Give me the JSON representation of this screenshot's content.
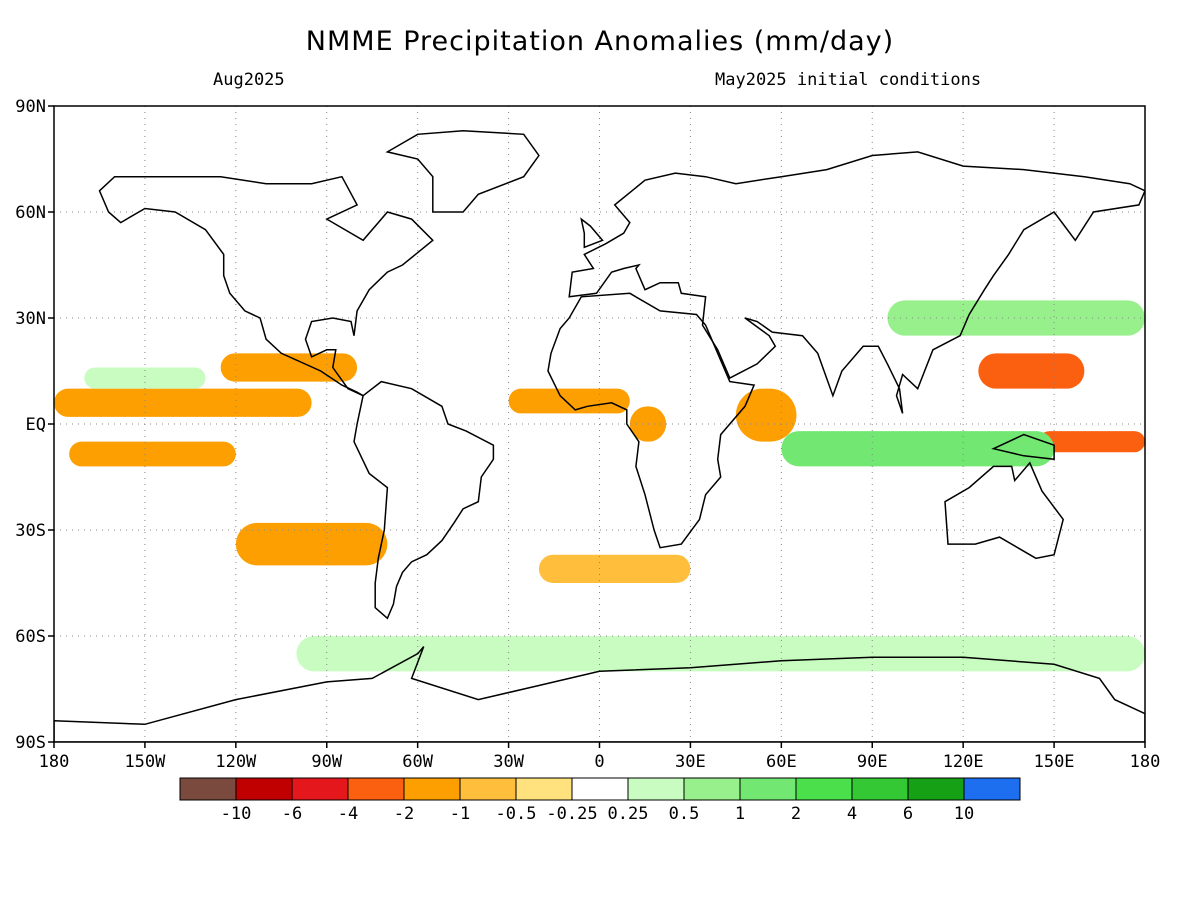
{
  "title": "NMME Precipitation Anomalies (mm/day)",
  "subtitle_left": "Aug2025",
  "subtitle_right": "May2025 initial conditions",
  "axes": {
    "lat_labels": [
      "90N",
      "60N",
      "30N",
      "EQ",
      "30S",
      "60S",
      "90S"
    ],
    "lon_labels": [
      "180",
      "150W",
      "120W",
      "90W",
      "60W",
      "30W",
      "0",
      "30E",
      "60E",
      "90E",
      "120E",
      "150E",
      "180"
    ],
    "lon_range": [
      -180,
      180
    ],
    "lat_range": [
      -90,
      90
    ],
    "grid": "dotted"
  },
  "colorbar": {
    "colors": [
      "#7a4a3e",
      "#c00000",
      "#e4181c",
      "#fb6010",
      "#fd9f00",
      "#ffbf3d",
      "#ffe27e",
      "#ffffff",
      "#c8fcc0",
      "#98f08c",
      "#72e872",
      "#4be04b",
      "#35c835",
      "#16a016",
      "#1e6ef0"
    ],
    "labels": [
      "-10",
      "-6",
      "-4",
      "-2",
      "-1",
      "-0.5",
      "-0.25",
      "0.25",
      "0.5",
      "1",
      "2",
      "4",
      "6",
      "10"
    ]
  },
  "chart_data": {
    "type": "heatmap",
    "title": "NMME Precipitation Anomalies (mm/day)",
    "xlabel": "",
    "ylabel": "",
    "xlim": [
      -180,
      180
    ],
    "ylim": [
      -90,
      90
    ],
    "anomaly_features": [
      {
        "lon": [
          -180,
          -95
        ],
        "lat": [
          2,
          10
        ],
        "value": -1.5
      },
      {
        "lon": [
          -175,
          -120
        ],
        "lat": [
          -12,
          -5
        ],
        "value": -1.0
      },
      {
        "lon": [
          -125,
          -80
        ],
        "lat": [
          12,
          20
        ],
        "value": -1.5
      },
      {
        "lon": [
          -30,
          10
        ],
        "lat": [
          3,
          10
        ],
        "value": -1.5
      },
      {
        "lon": [
          10,
          22
        ],
        "lat": [
          -5,
          5
        ],
        "value": -1.5
      },
      {
        "lon": [
          45,
          65
        ],
        "lat": [
          -5,
          10
        ],
        "value": -1.5
      },
      {
        "lon": [
          125,
          160
        ],
        "lat": [
          10,
          20
        ],
        "value": -2.0
      },
      {
        "lon": [
          145,
          180
        ],
        "lat": [
          -8,
          -2
        ],
        "value": -2.5
      },
      {
        "lon": [
          -120,
          -70
        ],
        "lat": [
          -40,
          -28
        ],
        "value": -1.0
      },
      {
        "lon": [
          -20,
          30
        ],
        "lat": [
          -45,
          -37
        ],
        "value": -0.7
      },
      {
        "lon": [
          -170,
          -130
        ],
        "lat": [
          10,
          16
        ],
        "value": 0.5
      },
      {
        "lon": [
          60,
          150
        ],
        "lat": [
          -12,
          -2
        ],
        "value": 1.5
      },
      {
        "lon": [
          95,
          180
        ],
        "lat": [
          25,
          35
        ],
        "value": 1.0
      },
      {
        "lon": [
          -100,
          180
        ],
        "lat": [
          -70,
          -60
        ],
        "value": 0.5
      }
    ]
  }
}
